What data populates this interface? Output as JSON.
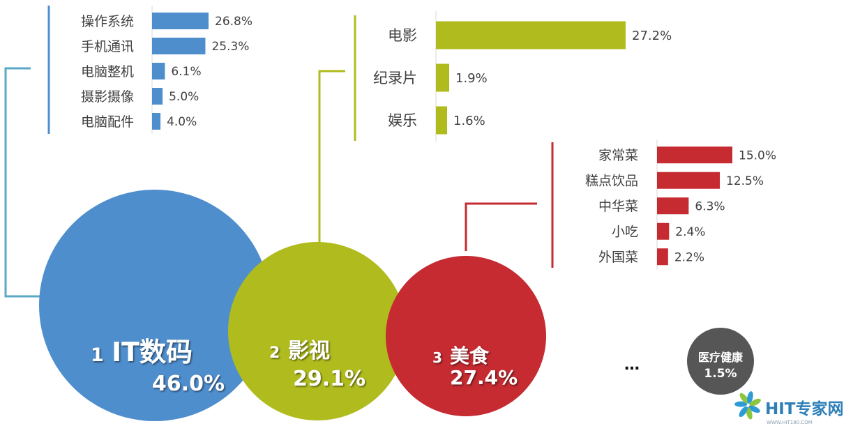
{
  "chart_data": [
    {
      "type": "bubble",
      "categories": [
        {
          "rank": "1",
          "name": "IT数码",
          "value": 46.0,
          "label": "46.0%",
          "color": "#4f8ecd"
        },
        {
          "rank": "2",
          "name": "影视",
          "value": 29.1,
          "label": "29.1%",
          "color": "#b0bc1e"
        },
        {
          "rank": "3",
          "name": "美食",
          "value": 27.4,
          "label": "27.4%",
          "color": "#c52b31"
        },
        {
          "rank": "",
          "name": "医疗健康",
          "value": 1.5,
          "label": "1.5%",
          "color": "#565656"
        }
      ],
      "ellipsis": "…"
    },
    {
      "type": "bar",
      "orientation": "horizontal",
      "parent": "IT数码",
      "color": "#4f8ecd",
      "categories": [
        "操作系统",
        "手机通讯",
        "电脑整机",
        "摄影摄像",
        "电脑配件"
      ],
      "values": [
        26.8,
        25.3,
        6.1,
        5.0,
        4.0
      ],
      "labels": [
        "26.8%",
        "25.3%",
        "6.1%",
        "5.0%",
        "4.0%"
      ]
    },
    {
      "type": "bar",
      "orientation": "horizontal",
      "parent": "影视",
      "color": "#b0bc1e",
      "categories": [
        "电影",
        "纪录片",
        "娱乐"
      ],
      "values": [
        27.2,
        1.9,
        1.6
      ],
      "labels": [
        "27.2%",
        "1.9%",
        "1.6%"
      ]
    },
    {
      "type": "bar",
      "orientation": "horizontal",
      "parent": "美食",
      "color": "#c52b31",
      "categories": [
        "家常菜",
        "糕点饮品",
        "中华菜",
        "小吃",
        "外国菜"
      ],
      "values": [
        15.0,
        12.5,
        6.3,
        2.4,
        2.2
      ],
      "labels": [
        "15.0%",
        "12.5%",
        "6.3%",
        "2.4%",
        "2.2%"
      ]
    }
  ],
  "logo": {
    "text": "HIT专家网",
    "subtext": "WWW.HIT180.COM",
    "colors": [
      "#2e9bd6",
      "#8cc63f"
    ]
  }
}
